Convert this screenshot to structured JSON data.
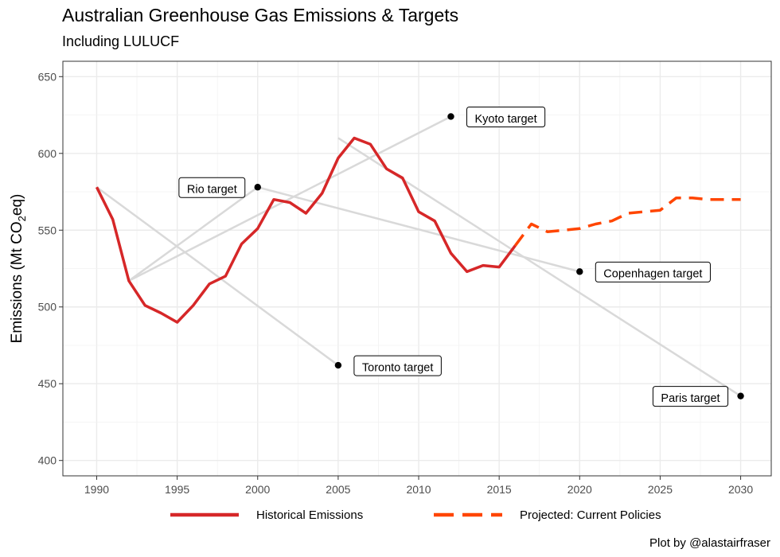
{
  "chart_data": {
    "type": "line",
    "title": "Australian Greenhouse Gas Emissions & Targets",
    "subtitle": "Including LULUCF",
    "caption": "Plot by @alastairfraser",
    "ylabel_parts": [
      "Emissions (Mt CO",
      "2",
      "eq)"
    ],
    "xlabel": "",
    "xlim": [
      1987.9,
      2031.9
    ],
    "ylim": [
      390,
      660
    ],
    "x_ticks": [
      1990,
      1995,
      2000,
      2005,
      2010,
      2015,
      2020,
      2025,
      2030
    ],
    "y_ticks": [
      400,
      450,
      500,
      550,
      600,
      650
    ],
    "grid": true,
    "legend_position": "bottom",
    "colors": {
      "historical": "#d62728",
      "projected": "#ff4500",
      "target_line": "#d9d9d9"
    },
    "series": [
      {
        "name": "Historical Emissions",
        "style": "solid",
        "x": [
          1990,
          1991,
          1992,
          1993,
          1994,
          1995,
          1996,
          1997,
          1998,
          1999,
          2000,
          2001,
          2002,
          2003,
          2004,
          2005,
          2006,
          2007,
          2008,
          2009,
          2010,
          2011,
          2012,
          2013,
          2014,
          2015,
          2016
        ],
        "y": [
          578,
          557,
          517,
          501,
          496,
          490,
          501,
          515,
          520,
          541,
          551,
          570,
          568,
          561,
          574,
          597,
          610,
          606,
          590,
          584,
          562,
          556,
          535,
          523,
          527,
          526,
          540
        ]
      },
      {
        "name": "Projected: Current Policies",
        "style": "dashed",
        "x": [
          2016,
          2017,
          2018,
          2019,
          2020,
          2021,
          2022,
          2023,
          2024,
          2025,
          2026,
          2027,
          2028,
          2029,
          2030
        ],
        "y": [
          540,
          554,
          549,
          550,
          551,
          554,
          556,
          561,
          562,
          563,
          571,
          571,
          570,
          570,
          570
        ]
      }
    ],
    "targets": [
      {
        "label": "Rio target",
        "start": [
          1992,
          517
        ],
        "end": [
          2000,
          578
        ],
        "label_side": "left"
      },
      {
        "label": "Kyoto target",
        "start": [
          1992,
          517
        ],
        "end": [
          2012,
          624
        ],
        "label_side": "right"
      },
      {
        "label": "Toronto target",
        "start": [
          1990,
          578
        ],
        "end": [
          2005,
          462
        ],
        "label_side": "right"
      },
      {
        "label": "Copenhagen target",
        "start": [
          2000,
          578
        ],
        "end": [
          2020,
          523
        ],
        "label_side": "right"
      },
      {
        "label": "Paris target",
        "start": [
          2005,
          610
        ],
        "end": [
          2030,
          442
        ],
        "label_side": "left"
      }
    ]
  }
}
